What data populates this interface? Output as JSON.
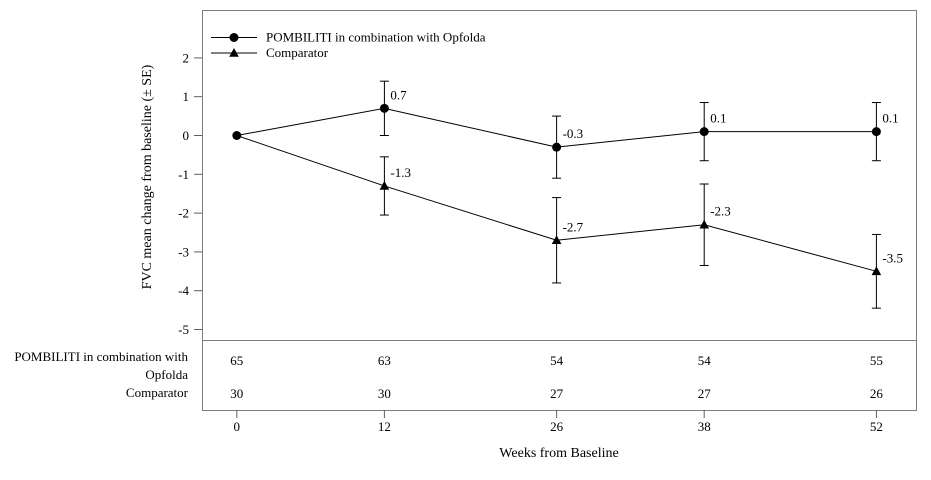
{
  "chart_data": {
    "type": "line",
    "title": "",
    "xlabel": "Weeks from Baseline",
    "ylabel": "FVC mean change from baseline (± SE)",
    "x": [
      0,
      12,
      26,
      38,
      52
    ],
    "x_tick_labels": [
      "0",
      "12",
      "26",
      "38",
      "52"
    ],
    "y_ticks": [
      2,
      1,
      0,
      -1,
      -2,
      -3,
      -4,
      -5
    ],
    "xlim": [
      0,
      52
    ],
    "ylim": [
      -5,
      2.6
    ],
    "grid": false,
    "legend_position": "top-left-inside",
    "error_bars": "± SE",
    "series": [
      {
        "name": "POMBILITI in combination with Opfolda",
        "marker": "circle",
        "values": [
          0,
          0.7,
          -0.3,
          0.1,
          0.1
        ],
        "se": [
          0,
          0.7,
          0.8,
          0.75,
          0.75
        ],
        "point_labels": [
          "",
          "0.7",
          "-0.3",
          "0.1",
          "0.1"
        ]
      },
      {
        "name": "Comparator",
        "marker": "triangle",
        "values": [
          0,
          -1.3,
          -2.7,
          -2.3,
          -3.5
        ],
        "se": [
          0,
          0.75,
          1.1,
          1.05,
          0.95
        ],
        "point_labels": [
          "",
          "-1.3",
          "-2.7",
          "-2.3",
          "-3.5"
        ]
      }
    ]
  },
  "legend": {
    "items": [
      {
        "label": "POMBILITI in combination with Opfolda",
        "marker": "circle"
      },
      {
        "label": "Comparator",
        "marker": "triangle"
      }
    ]
  },
  "at_risk_table": {
    "rows": [
      {
        "label_lines": [
          "POMBILITI in combination with",
          "Opfolda"
        ],
        "counts": [
          "65",
          "63",
          "54",
          "54",
          "55"
        ]
      },
      {
        "label_lines": [
          "Comparator"
        ],
        "counts": [
          "30",
          "30",
          "27",
          "27",
          "26"
        ]
      }
    ]
  },
  "colors": {
    "series": "#000000",
    "frame": "#7d7d7d",
    "tick": "#5f5f5f",
    "text": "#000000",
    "background": "#ffffff"
  }
}
